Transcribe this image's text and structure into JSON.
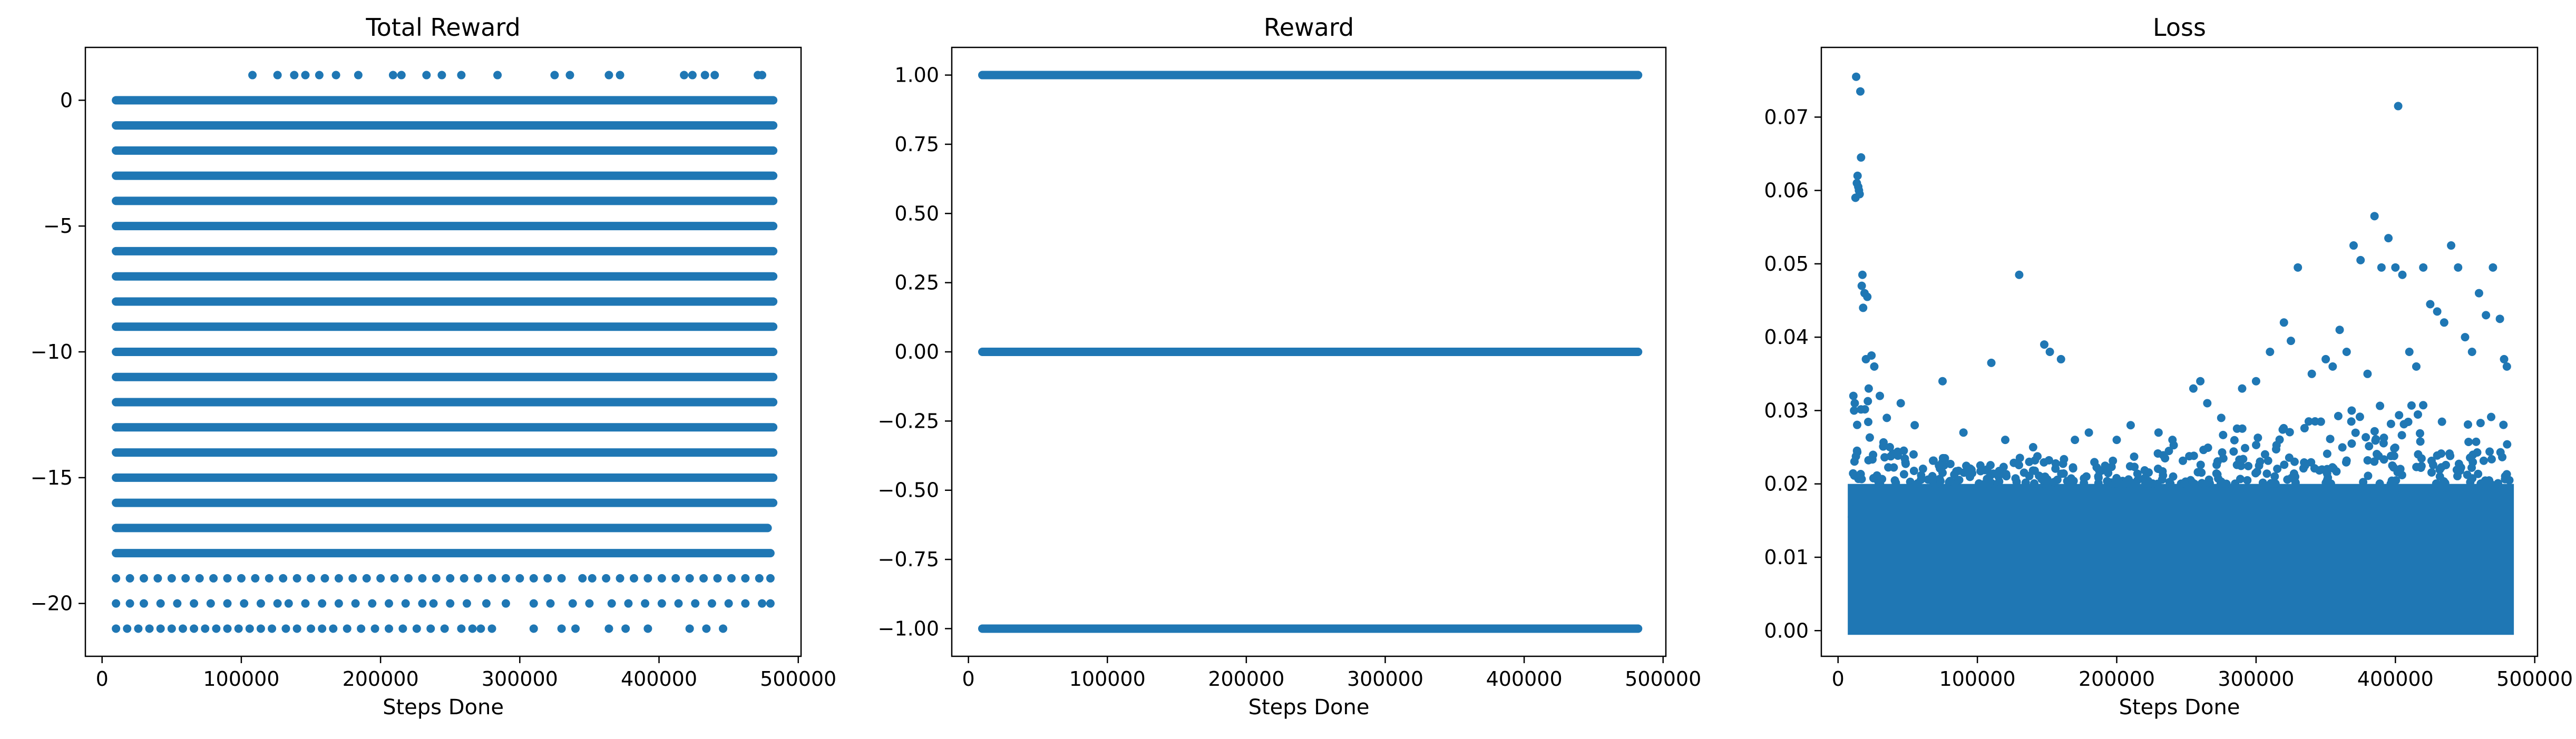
{
  "colors": {
    "marker": "#1f77b4",
    "axes": "#000000",
    "background": "#ffffff"
  },
  "chart_data": [
    {
      "type": "scatter",
      "title": "Total Reward",
      "xlabel": "Steps Done",
      "ylabel": "",
      "xlim": [
        -12000,
        502000
      ],
      "ylim": [
        -22.1,
        2.1
      ],
      "xticks": [
        0,
        100000,
        200000,
        300000,
        400000,
        500000
      ],
      "xtick_labels": [
        "0",
        "100000",
        "200000",
        "300000",
        "400000",
        "500000"
      ],
      "yticks": [
        0,
        -5,
        -10,
        -15,
        -20
      ],
      "ytick_labels": [
        "0",
        "−5",
        "−10",
        "−15",
        "−20"
      ],
      "grid": false,
      "series": [
        {
          "dense_bands": [
            {
              "y": 0,
              "x_range": [
                10000,
                482000
              ]
            },
            {
              "y": -1,
              "x_range": [
                10000,
                482000
              ]
            },
            {
              "y": -2,
              "x_range": [
                10000,
                482000
              ]
            },
            {
              "y": -3,
              "x_range": [
                10000,
                482000
              ]
            },
            {
              "y": -4,
              "x_range": [
                10000,
                482000
              ]
            },
            {
              "y": -5,
              "x_range": [
                10000,
                482000
              ]
            },
            {
              "y": -6,
              "x_range": [
                10000,
                482000
              ]
            },
            {
              "y": -7,
              "x_range": [
                10000,
                482000
              ]
            },
            {
              "y": -8,
              "x_range": [
                10000,
                482000
              ]
            },
            {
              "y": -9,
              "x_range": [
                10000,
                482000
              ]
            },
            {
              "y": -10,
              "x_range": [
                10000,
                482000
              ]
            },
            {
              "y": -11,
              "x_range": [
                10000,
                482000
              ]
            },
            {
              "y": -12,
              "x_range": [
                10000,
                482000
              ]
            },
            {
              "y": -13,
              "x_range": [
                10000,
                482000
              ]
            },
            {
              "y": -14,
              "x_range": [
                10000,
                482000
              ]
            },
            {
              "y": -15,
              "x_range": [
                10000,
                482000
              ]
            },
            {
              "y": -16,
              "x_range": [
                10000,
                482000
              ]
            },
            {
              "y": -17,
              "x_range": [
                10000,
                478000
              ]
            },
            {
              "y": -18,
              "x_range": [
                10000,
                480000
              ]
            }
          ],
          "sparse_rows": [
            {
              "y": 1,
              "x": [
                108000,
                126000,
                138000,
                146000,
                156000,
                168000,
                184000,
                209000,
                215000,
                233000,
                244000,
                258000,
                284000,
                325000,
                336000,
                364000,
                372000,
                418000,
                424000,
                433000,
                440000,
                471000,
                474000
              ]
            },
            {
              "y": -19,
              "x": [
                10000,
                20000,
                30000,
                40000,
                50000,
                60000,
                70000,
                80000,
                90000,
                100000,
                110000,
                120000,
                130000,
                140000,
                150000,
                160000,
                170000,
                180000,
                190000,
                200000,
                210000,
                220000,
                230000,
                240000,
                250000,
                260000,
                270000,
                280000,
                290000,
                300000,
                310000,
                320000,
                330000,
                345000,
                352000,
                362000,
                372000,
                382000,
                392000,
                402000,
                412000,
                422000,
                432000,
                442000,
                452000,
                462000,
                472000,
                480000
              ]
            },
            {
              "y": -20,
              "x": [
                10000,
                20000,
                30000,
                42000,
                54000,
                66000,
                78000,
                90000,
                102000,
                114000,
                126000,
                134000,
                146000,
                158000,
                170000,
                182000,
                194000,
                206000,
                218000,
                230000,
                238000,
                250000,
                262000,
                276000,
                290000,
                310000,
                322000,
                338000,
                350000,
                366000,
                378000,
                390000,
                402000,
                414000,
                426000,
                438000,
                450000,
                462000,
                474000,
                480000
              ]
            },
            {
              "y": -21,
              "x": [
                10000,
                18000,
                26000,
                34000,
                42000,
                50000,
                58000,
                66000,
                74000,
                82000,
                90000,
                98000,
                106000,
                114000,
                122000,
                132000,
                140000,
                150000,
                158000,
                166000,
                176000,
                186000,
                196000,
                206000,
                216000,
                226000,
                236000,
                246000,
                258000,
                266000,
                272000,
                280000,
                310000,
                330000,
                340000,
                364000,
                376000,
                392000,
                422000,
                434000,
                446000
              ]
            }
          ]
        }
      ]
    },
    {
      "type": "scatter",
      "title": "Reward",
      "xlabel": "Steps Done",
      "ylabel": "",
      "xlim": [
        -12000,
        502000
      ],
      "ylim": [
        -1.1,
        1.1
      ],
      "xticks": [
        0,
        100000,
        200000,
        300000,
        400000,
        500000
      ],
      "xtick_labels": [
        "0",
        "100000",
        "200000",
        "300000",
        "400000",
        "500000"
      ],
      "yticks": [
        1.0,
        0.75,
        0.5,
        0.25,
        0.0,
        -0.25,
        -0.5,
        -0.75,
        -1.0
      ],
      "ytick_labels": [
        "1.00",
        "0.75",
        "0.50",
        "0.25",
        "0.00",
        "−0.25",
        "−0.50",
        "−0.75",
        "−1.00"
      ],
      "grid": false,
      "series": [
        {
          "dense_bands": [
            {
              "y": 1,
              "x_range": [
                10000,
                482000
              ]
            },
            {
              "y": 0,
              "x_range": [
                10000,
                482000
              ]
            },
            {
              "y": -1,
              "x_range": [
                10000,
                482000
              ]
            }
          ]
        }
      ]
    },
    {
      "type": "scatter",
      "title": "Loss",
      "xlabel": "Steps Done",
      "ylabel": "",
      "xlim": [
        -12000,
        502000
      ],
      "ylim": [
        -0.0035,
        0.0795
      ],
      "xticks": [
        0,
        100000,
        200000,
        300000,
        400000,
        500000
      ],
      "xtick_labels": [
        "0",
        "100000",
        "200000",
        "300000",
        "400000",
        "500000"
      ],
      "yticks": [
        0.0,
        0.01,
        0.02,
        0.03,
        0.04,
        0.05,
        0.06,
        0.07
      ],
      "ytick_labels": [
        "0.00",
        "0.01",
        "0.02",
        "0.03",
        "0.04",
        "0.05",
        "0.06",
        "0.07"
      ],
      "grid": false,
      "series": [
        {
          "dense_region": {
            "x_range": [
              10000,
              482000
            ],
            "y_range": [
              0.0,
              0.02
            ]
          },
          "dense_envelope": [
            [
              10000,
              0.017
            ],
            [
              13000,
              0.034
            ],
            [
              15000,
              0.047
            ],
            [
              18000,
              0.038
            ],
            [
              22000,
              0.031
            ],
            [
              30000,
              0.026
            ],
            [
              60000,
              0.024
            ],
            [
              100000,
              0.023
            ],
            [
              140000,
              0.024
            ],
            [
              180000,
              0.023
            ],
            [
              220000,
              0.024
            ],
            [
              250000,
              0.026
            ],
            [
              280000,
              0.028
            ],
            [
              320000,
              0.029
            ],
            [
              360000,
              0.03
            ],
            [
              400000,
              0.031
            ],
            [
              440000,
              0.031
            ],
            [
              482000,
              0.029
            ]
          ],
          "points": [
            [
              10000,
              0.0155
            ],
            [
              10500,
              0.0165
            ],
            [
              11000,
              0.032
            ],
            [
              11500,
              0.03
            ],
            [
              12000,
              0.031
            ],
            [
              12500,
              0.059
            ],
            [
              13000,
              0.0755
            ],
            [
              13500,
              0.061
            ],
            [
              14000,
              0.062
            ],
            [
              14500,
              0.0605
            ],
            [
              15000,
              0.06
            ],
            [
              15500,
              0.0595
            ],
            [
              16000,
              0.0735
            ],
            [
              16500,
              0.0645
            ],
            [
              17000,
              0.047
            ],
            [
              17500,
              0.0485
            ],
            [
              18000,
              0.044
            ],
            [
              19000,
              0.046
            ],
            [
              20000,
              0.037
            ],
            [
              21000,
              0.0455
            ],
            [
              22000,
              0.033
            ],
            [
              24000,
              0.0375
            ],
            [
              26000,
              0.036
            ],
            [
              30000,
              0.032
            ],
            [
              35000,
              0.029
            ],
            [
              45000,
              0.031
            ],
            [
              55000,
              0.028
            ],
            [
              75000,
              0.034
            ],
            [
              90000,
              0.027
            ],
            [
              110000,
              0.0365
            ],
            [
              120000,
              0.026
            ],
            [
              130000,
              0.0485
            ],
            [
              140000,
              0.025
            ],
            [
              148000,
              0.039
            ],
            [
              152000,
              0.038
            ],
            [
              160000,
              0.037
            ],
            [
              170000,
              0.026
            ],
            [
              180000,
              0.027
            ],
            [
              200000,
              0.026
            ],
            [
              210000,
              0.028
            ],
            [
              230000,
              0.027
            ],
            [
              240000,
              0.026
            ],
            [
              255000,
              0.033
            ],
            [
              260000,
              0.034
            ],
            [
              265000,
              0.031
            ],
            [
              275000,
              0.029
            ],
            [
              290000,
              0.033
            ],
            [
              300000,
              0.034
            ],
            [
              310000,
              0.038
            ],
            [
              320000,
              0.042
            ],
            [
              325000,
              0.0395
            ],
            [
              330000,
              0.0495
            ],
            [
              340000,
              0.035
            ],
            [
              350000,
              0.037
            ],
            [
              355000,
              0.036
            ],
            [
              360000,
              0.041
            ],
            [
              365000,
              0.038
            ],
            [
              370000,
              0.0525
            ],
            [
              375000,
              0.0505
            ],
            [
              380000,
              0.035
            ],
            [
              385000,
              0.0565
            ],
            [
              390000,
              0.0495
            ],
            [
              395000,
              0.0535
            ],
            [
              400000,
              0.0495
            ],
            [
              402000,
              0.0715
            ],
            [
              405000,
              0.0485
            ],
            [
              410000,
              0.038
            ],
            [
              415000,
              0.036
            ],
            [
              420000,
              0.0495
            ],
            [
              425000,
              0.0445
            ],
            [
              430000,
              0.0435
            ],
            [
              435000,
              0.042
            ],
            [
              440000,
              0.0525
            ],
            [
              445000,
              0.0495
            ],
            [
              450000,
              0.04
            ],
            [
              455000,
              0.038
            ],
            [
              460000,
              0.046
            ],
            [
              465000,
              0.043
            ],
            [
              470000,
              0.0495
            ],
            [
              475000,
              0.0425
            ],
            [
              478000,
              0.037
            ],
            [
              480000,
              0.036
            ]
          ]
        }
      ]
    }
  ]
}
